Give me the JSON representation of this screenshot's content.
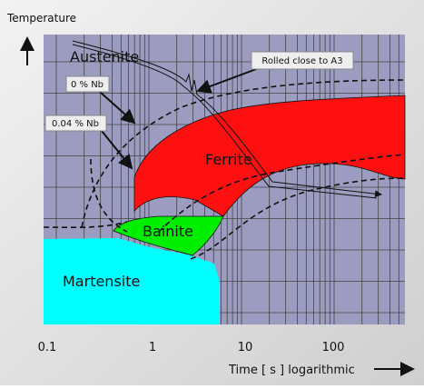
{
  "axis_title_y": "Temperature",
  "x_axis": {
    "label": "Time [ s ] logarithmic",
    "ticks": [
      "0.1",
      "1",
      "10",
      "100"
    ]
  },
  "regions": {
    "austenite": "Austenite",
    "ferrite": "Ferrite",
    "bainite": "Bainite",
    "martensite": "Martensite"
  },
  "callouts": {
    "rolled": "Rolled close to A3",
    "nb0": "0 % Nb",
    "nb004": "0.04 % Nb"
  }
}
